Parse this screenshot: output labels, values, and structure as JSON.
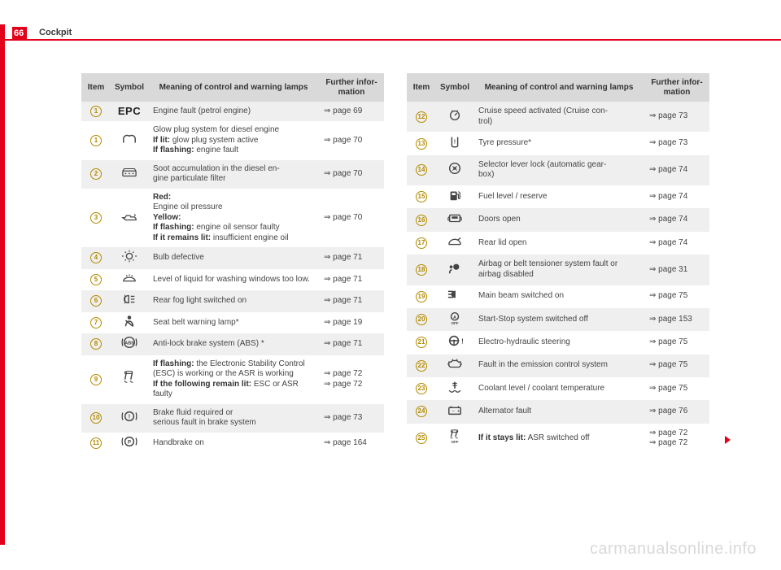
{
  "page_number": "66",
  "section_title": "Cockpit",
  "watermark": "carmanualsonline.info",
  "headers": {
    "item": "Item",
    "symbol": "Symbol",
    "meaning": "Meaning of control and warning lamps",
    "further": "Further infor-\nmation"
  },
  "rows_left": [
    {
      "n": "1",
      "alt": true,
      "icon": "epc",
      "desc": "Engine fault (petrol engine)",
      "ref": "⇒ page 69"
    },
    {
      "n": "1",
      "alt": false,
      "icon": "glow",
      "desc": "Glow plug system for diesel engine\n<b>If lit:</b> glow plug system active\n<b>If flashing:</b> engine fault",
      "ref": "⇒ page 70"
    },
    {
      "n": "2",
      "alt": true,
      "icon": "soot",
      "desc": "Soot accumulation in the diesel en-\ngine particulate filter",
      "ref": "⇒ page 70"
    },
    {
      "n": "3",
      "alt": false,
      "icon": "oil",
      "desc": "<b>Red:</b>\nEngine oil pressure\n<b>Yellow:</b>\n<b>If flashing:</b> engine oil sensor faulty\n<b>If it remains lit:</b> insufficient engine oil",
      "ref": "⇒ page 70"
    },
    {
      "n": "4",
      "alt": true,
      "icon": "bulb",
      "desc": "Bulb defective",
      "ref": "⇒ page 71"
    },
    {
      "n": "5",
      "alt": false,
      "icon": "washer",
      "desc": "Level of liquid for washing windows too low.",
      "ref": "⇒ page 71"
    },
    {
      "n": "6",
      "alt": true,
      "icon": "rearfog",
      "desc": "Rear fog light switched on",
      "ref": "⇒ page 71"
    },
    {
      "n": "7",
      "alt": false,
      "icon": "belt",
      "desc": "Seat belt warning lamp*",
      "ref": "⇒ page 19"
    },
    {
      "n": "8",
      "alt": true,
      "icon": "abs",
      "desc": "Anti-lock brake system (ABS) *",
      "ref": "⇒ page 71"
    },
    {
      "n": "9",
      "alt": false,
      "icon": "esc",
      "desc": "<b>If flashing:</b> the Electronic Stability Control (ESC) is working or the ASR is working\n<b>If the following remain lit:</b> ESC or ASR faulty",
      "ref": "⇒ page 72\n⇒ page 72"
    },
    {
      "n": "10",
      "alt": true,
      "icon": "brake",
      "desc": "Brake fluid required or\nserious fault in brake system",
      "ref": "⇒ page 73"
    },
    {
      "n": "11",
      "alt": false,
      "icon": "hand",
      "desc": "Handbrake on",
      "ref": "⇒ page 164"
    }
  ],
  "rows_right": [
    {
      "n": "12",
      "alt": true,
      "icon": "cruise",
      "desc": "Cruise speed activated (Cruise con-\ntrol)",
      "ref": "⇒ page 73"
    },
    {
      "n": "13",
      "alt": false,
      "icon": "tyre",
      "desc": "Tyre pressure*",
      "ref": "⇒ page 73"
    },
    {
      "n": "14",
      "alt": true,
      "icon": "gear",
      "desc": "Selector lever lock (automatic gear-\nbox)",
      "ref": "⇒ page 74"
    },
    {
      "n": "15",
      "alt": false,
      "icon": "fuel",
      "desc": "Fuel level / reserve",
      "ref": "⇒ page 74"
    },
    {
      "n": "16",
      "alt": true,
      "icon": "doors",
      "desc": "Doors open",
      "ref": "⇒ page 74"
    },
    {
      "n": "17",
      "alt": false,
      "icon": "rearlid",
      "desc": "Rear lid open",
      "ref": "⇒ page 74"
    },
    {
      "n": "18",
      "alt": true,
      "icon": "airbag",
      "desc": "Airbag or belt tensioner system fault or airbag disabled",
      "ref": "⇒ page 31"
    },
    {
      "n": "19",
      "alt": false,
      "icon": "mainbeam",
      "desc": "Main beam switched on",
      "ref": "⇒ page 75"
    },
    {
      "n": "20",
      "alt": true,
      "icon": "startstop",
      "desc": "Start-Stop system switched off",
      "ref": "⇒ page 153"
    },
    {
      "n": "21",
      "alt": false,
      "icon": "steering",
      "desc": "Electro-hydraulic steering",
      "ref": "⇒ page 75"
    },
    {
      "n": "22",
      "alt": true,
      "icon": "emission",
      "desc": "Fault in the emission control system",
      "ref": "⇒ page 75"
    },
    {
      "n": "23",
      "alt": false,
      "icon": "coolant",
      "desc": "Coolant level / coolant temperature",
      "ref": "⇒ page 75"
    },
    {
      "n": "24",
      "alt": true,
      "icon": "battery",
      "desc": "Alternator fault",
      "ref": "⇒ page 76"
    },
    {
      "n": "25",
      "alt": false,
      "icon": "asroff",
      "desc": "<b>If it stays lit:</b> ASR switched off",
      "ref": "⇒ page 72\n⇒ page 72"
    }
  ]
}
